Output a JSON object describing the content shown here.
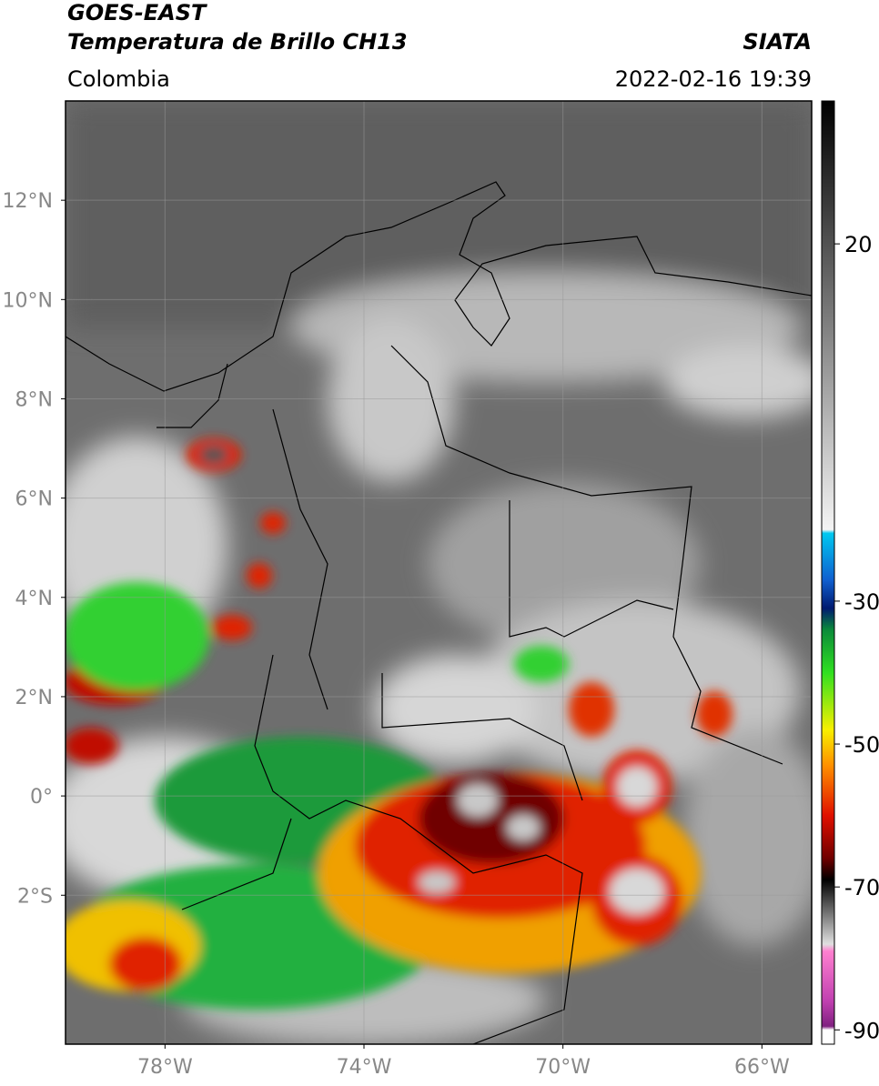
{
  "header": {
    "title": "GOES-EAST",
    "subtitle": "Temperatura de Brillo CH13",
    "region": "Colombia",
    "source": "SIATA",
    "datetime": "2022-02-16 19:39"
  },
  "map": {
    "lonlim": [
      -80,
      -65
    ],
    "latlim": [
      -5,
      14
    ],
    "lon_ticks": [
      {
        "value": -78,
        "label": "78°W"
      },
      {
        "value": -74,
        "label": "74°W"
      },
      {
        "value": -70,
        "label": "70°W"
      },
      {
        "value": -66,
        "label": "66°W"
      }
    ],
    "lat_ticks": [
      {
        "value": 12,
        "label": "12°N"
      },
      {
        "value": 10,
        "label": "10°N"
      },
      {
        "value": 8,
        "label": "8°N"
      },
      {
        "value": 6,
        "label": "6°N"
      },
      {
        "value": 4,
        "label": "4°N"
      },
      {
        "value": 2,
        "label": "2°N"
      },
      {
        "value": 0,
        "label": "0°"
      },
      {
        "value": -2,
        "label": "2°S"
      }
    ],
    "grid": true
  },
  "colorbar": {
    "clim": [
      -92,
      40
    ],
    "ticks": [
      20,
      -30,
      -50,
      -70,
      -90
    ],
    "colormap": [
      {
        "value": 40,
        "color": "#000000"
      },
      {
        "value": -20,
        "color": "#f4f4f4"
      },
      {
        "value": -20.5,
        "color": "#00c8f0"
      },
      {
        "value": -27,
        "color": "#1060d0"
      },
      {
        "value": -31,
        "color": "#001a70"
      },
      {
        "value": -34,
        "color": "#0b8a3a"
      },
      {
        "value": -40,
        "color": "#30e020"
      },
      {
        "value": -48,
        "color": "#f8f000"
      },
      {
        "value": -53,
        "color": "#ff9000"
      },
      {
        "value": -60,
        "color": "#e01000"
      },
      {
        "value": -66,
        "color": "#700000"
      },
      {
        "value": -69,
        "color": "#000000"
      },
      {
        "value": -78,
        "color": "#e0e0e0"
      },
      {
        "value": -79,
        "color": "#ff80d0"
      },
      {
        "value": -86,
        "color": "#c040b0"
      },
      {
        "value": -89.5,
        "color": "#802080"
      },
      {
        "value": -90,
        "color": "#ffffff"
      },
      {
        "value": -92,
        "color": "#ffffff"
      }
    ]
  }
}
